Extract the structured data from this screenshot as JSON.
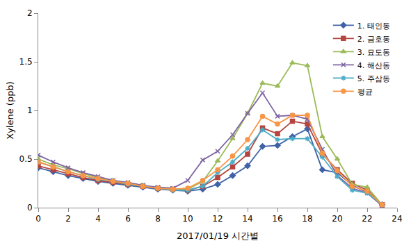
{
  "chart_data": {
    "type": "line",
    "x_label": "2017/01/19 시간별",
    "y_label": "Xylene (ppb)",
    "x": [
      0,
      1,
      2,
      3,
      4,
      5,
      6,
      7,
      8,
      9,
      10,
      11,
      12,
      13,
      14,
      15,
      16,
      17,
      18,
      19,
      20,
      21,
      22,
      23
    ],
    "xlim": [
      0,
      24
    ],
    "xticks": [
      0,
      2,
      4,
      6,
      8,
      10,
      12,
      14,
      16,
      18,
      20,
      22,
      24
    ],
    "ylim": [
      0,
      2
    ],
    "yticks": [
      0,
      0.5,
      1,
      1.5,
      2
    ],
    "grid": false,
    "legend": "upper right",
    "series": [
      {
        "name": "1. 태인동",
        "color": "#3f63a6",
        "marker": "diamond",
        "values": [
          0.41,
          0.37,
          0.33,
          0.3,
          0.27,
          0.25,
          0.23,
          0.21,
          0.19,
          0.18,
          0.17,
          0.19,
          0.24,
          0.33,
          0.43,
          0.63,
          0.64,
          0.73,
          0.81,
          0.39,
          0.36,
          0.23,
          0.16,
          0.03
        ]
      },
      {
        "name": "2. 금호동",
        "color": "#b5453f",
        "marker": "square",
        "values": [
          0.43,
          0.39,
          0.35,
          0.31,
          0.28,
          0.26,
          0.24,
          0.22,
          0.2,
          0.19,
          0.18,
          0.22,
          0.31,
          0.42,
          0.55,
          0.82,
          0.76,
          0.89,
          0.86,
          0.55,
          0.39,
          0.25,
          0.18,
          0.03
        ]
      },
      {
        "name": "3. 묘도동",
        "color": "#9bbb59",
        "marker": "triangle",
        "values": [
          0.5,
          0.44,
          0.4,
          0.35,
          0.31,
          0.28,
          0.25,
          0.23,
          0.2,
          0.19,
          0.19,
          0.27,
          0.48,
          0.71,
          0.97,
          1.28,
          1.25,
          1.49,
          1.46,
          0.73,
          0.5,
          0.24,
          0.21,
          0.03
        ]
      },
      {
        "name": "4. 해산동",
        "color": "#7f64a2",
        "marker": "x",
        "values": [
          0.54,
          0.47,
          0.41,
          0.36,
          0.32,
          0.28,
          0.26,
          0.23,
          0.21,
          0.2,
          0.28,
          0.49,
          0.58,
          0.75,
          0.97,
          1.18,
          0.94,
          0.95,
          0.91,
          0.6,
          0.33,
          0.2,
          0.15,
          0.02
        ]
      },
      {
        "name": "5. 주삼동",
        "color": "#4bacc6",
        "marker": "asterisk",
        "values": [
          0.47,
          0.42,
          0.37,
          0.33,
          0.29,
          0.27,
          0.24,
          0.22,
          0.2,
          0.18,
          0.18,
          0.22,
          0.36,
          0.47,
          0.61,
          0.8,
          0.7,
          0.71,
          0.71,
          0.52,
          0.32,
          0.18,
          0.15,
          0.03
        ]
      },
      {
        "name": "평균",
        "color": "#f79646",
        "marker": "circle",
        "values": [
          0.47,
          0.42,
          0.37,
          0.33,
          0.3,
          0.27,
          0.25,
          0.22,
          0.2,
          0.19,
          0.2,
          0.28,
          0.39,
          0.53,
          0.7,
          0.94,
          0.86,
          0.95,
          0.95,
          0.56,
          0.38,
          0.22,
          0.17,
          0.03
        ]
      }
    ]
  }
}
